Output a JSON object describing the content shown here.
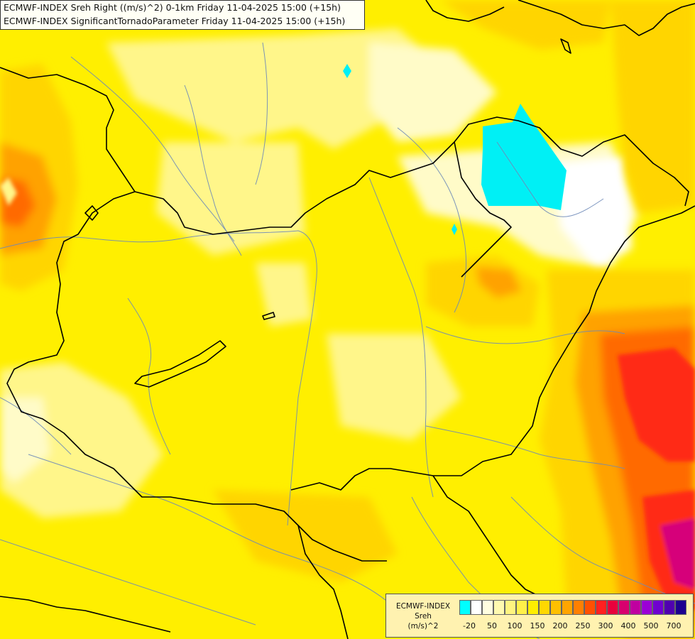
{
  "header": {
    "line1": "ECMWF-INDEX Sreh Right ((m/s)^2) 0-1km Friday 11-04-2025 15:00 (+15h)",
    "line2": "ECMWF-INDEX SignificantTornadoParameter Friday 11-04-2025 15:00 (+15h)"
  },
  "legend": {
    "title": "ECMWF-INDEX",
    "variable": "Sreh",
    "unit": "(m/s)^2",
    "colors": [
      "#00ffff",
      "#ffffff",
      "#fffde0",
      "#fff9b0",
      "#fff480",
      "#fff04a",
      "#ffee00",
      "#ffd800",
      "#ffc000",
      "#ffa500",
      "#ff8000",
      "#ff5000",
      "#ff2020",
      "#e8003c",
      "#d8006e",
      "#c000a0",
      "#9b00d6",
      "#7000d0",
      "#5000b0",
      "#1d0090"
    ],
    "tick_labels": [
      "-20",
      "50",
      "100",
      "150",
      "200",
      "250",
      "300",
      "400",
      "500",
      "700"
    ]
  },
  "palette": {
    "base_yellow": "#ffef00",
    "light_yellow": "#fff68a",
    "pale_yellow": "#fffbc8",
    "gold": "#ffd500",
    "orange": "#ffa200",
    "dark_orange": "#ff6a00",
    "red": "#ff2a12",
    "magenta": "#d6007a",
    "cyan": "#00f0f5",
    "border": "#000000",
    "river": "#6e8ab8"
  }
}
